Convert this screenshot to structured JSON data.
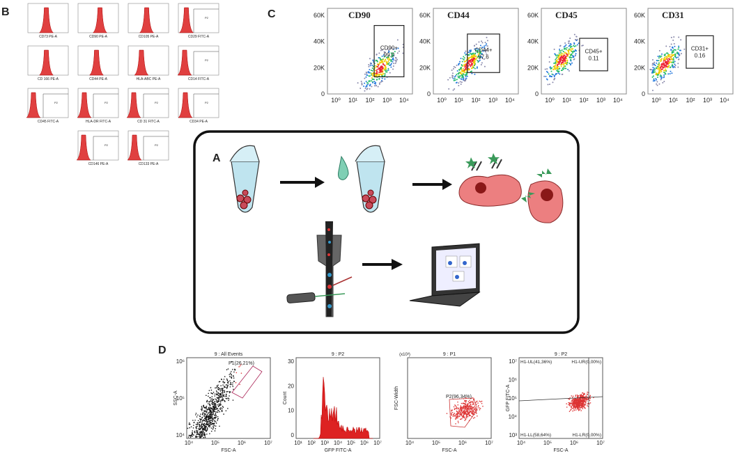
{
  "panel_b": {
    "label": "B",
    "plots": [
      {
        "x_label": "CD73 PE-A"
      },
      {
        "x_label": "CD90 PE-A"
      },
      {
        "x_label": "CD105 PE-A"
      },
      {
        "x_label": "CD29 FITC-A"
      },
      {
        "x_label": "CD 166 PE-A"
      },
      {
        "x_label": "CD44 PE-A"
      },
      {
        "x_label": "HLA-ABC PE-A"
      },
      {
        "x_label": "CD14 FITC-A"
      },
      {
        "x_label": "CD45 FITC-A"
      },
      {
        "x_label": "HLA-DR FITC-A"
      },
      {
        "x_label": "CD 31 FITC-A"
      },
      {
        "x_label": "CD34 PE-A"
      },
      {
        "x_label": "CD146 PE-A"
      },
      {
        "x_label": "CD133 PE-A"
      }
    ],
    "gate": "P2"
  },
  "panel_c": {
    "label": "C",
    "yticks": [
      "60K",
      "40K",
      "20K",
      "0"
    ],
    "xticks": [
      "10⁰",
      "10¹",
      "10²",
      "10³",
      "10⁴"
    ],
    "plots": [
      {
        "title": "CD90",
        "gate": "CD90+",
        "gate_value": "99.0"
      },
      {
        "title": "CD44",
        "gate": "CD44+",
        "gate_value": "97.6"
      },
      {
        "title": "CD45",
        "gate": "CD45+",
        "gate_value": "0.11"
      },
      {
        "title": "CD31",
        "gate": "CD31+",
        "gate_value": "0.16"
      }
    ]
  },
  "panel_a": {
    "label": "A"
  },
  "panel_d": {
    "label": "D",
    "plots": [
      {
        "title": "9 : All Events",
        "x_label": "FSC-A",
        "y_label": "SSC-A",
        "xticks": [
          "10⁴",
          "10⁵",
          "10⁶",
          "10⁷"
        ],
        "yticks": [
          "10⁶",
          "10⁵",
          "10⁴"
        ],
        "gates": [
          "P1(26,21%)"
        ]
      },
      {
        "title": "9 : P2",
        "x_label": "GFP FITC-A",
        "y_label": "Count",
        "xticks": [
          "10¹",
          "10²",
          "10³",
          "10⁴",
          "10⁵",
          "10⁶",
          "10⁷"
        ],
        "yticks": [
          "30",
          "20",
          "10",
          "0"
        ],
        "gates": []
      },
      {
        "title": "9 : P1",
        "x_label": "FSC-A",
        "y_label": "FSC-Width",
        "y_unit": "(x10³)",
        "xticks": [
          "10⁴",
          "10⁵",
          "10⁶",
          "10⁷"
        ],
        "yticks": [],
        "gates": [
          "P2(96,34%)"
        ]
      },
      {
        "title": "9 : P2",
        "x_label": "FSC-A",
        "y_label": "GFP FITC-A",
        "xticks": [
          "10⁴",
          "10⁵",
          "10⁶",
          "10⁷"
        ],
        "yticks": [
          "10⁷",
          "10⁶",
          "10⁵",
          "10⁴",
          "10³"
        ],
        "gates": [
          "H1-UL(41,36%)",
          "H1-UR(0,00%)",
          "H1-LL(58,64%)",
          "H1-LR(0,00%)"
        ]
      }
    ]
  }
}
